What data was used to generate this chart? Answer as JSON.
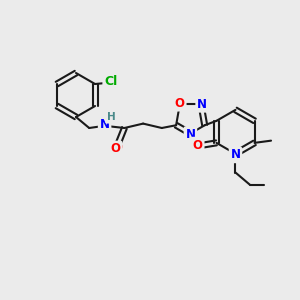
{
  "background_color": "#ebebeb",
  "bond_color": "#1a1a1a",
  "bond_width": 1.5,
  "atom_colors": {
    "C": "#1a1a1a",
    "N": "#0000ff",
    "O": "#ff0000",
    "Cl": "#00aa00",
    "H": "#4a8a8a"
  },
  "font_size": 8.5
}
